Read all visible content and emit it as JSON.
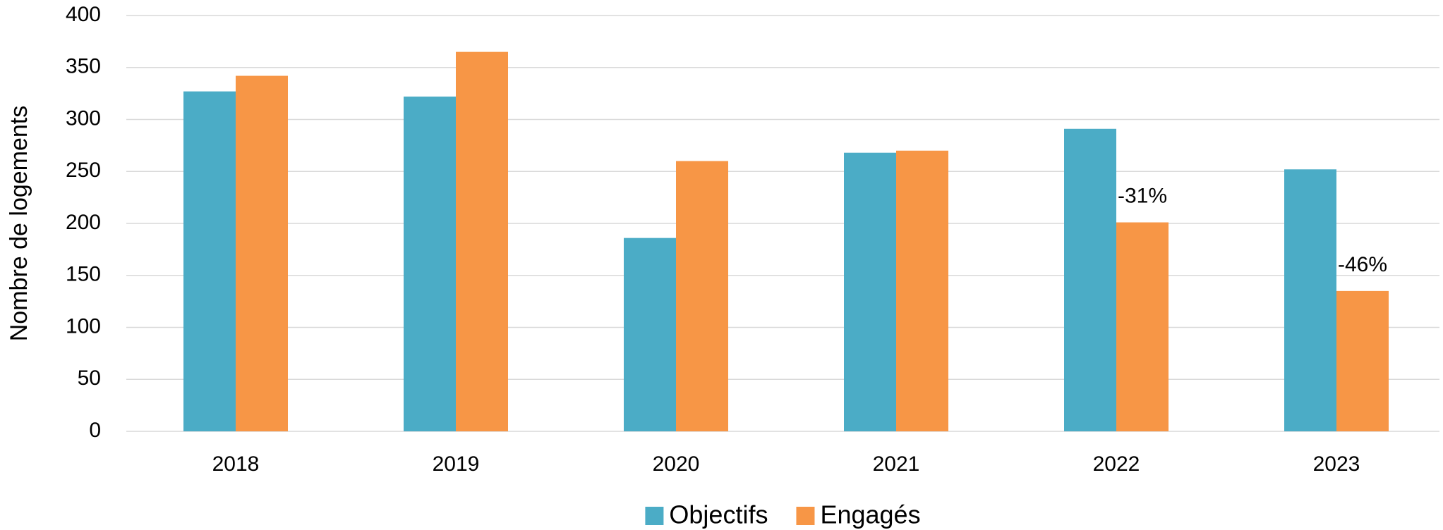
{
  "chart_data": {
    "type": "bar",
    "y_label": "Nombre de logements",
    "categories": [
      "2018",
      "2019",
      "2020",
      "2021",
      "2022",
      "2023"
    ],
    "series": [
      {
        "name": "Objectifs",
        "color": "#4bacc6",
        "values": [
          327,
          322,
          186,
          268,
          291,
          252
        ]
      },
      {
        "name": "Engagés",
        "color": "#f79646",
        "values": [
          342,
          365,
          260,
          270,
          201,
          135
        ]
      }
    ],
    "annotations": [
      {
        "text": "-31%",
        "category": "2022",
        "series": "Engagés"
      },
      {
        "text": "-46%",
        "category": "2023",
        "series": "Engagés"
      }
    ],
    "ylim": [
      0,
      400
    ],
    "yticks": [
      0,
      50,
      100,
      150,
      200,
      250,
      300,
      350,
      400
    ],
    "grid": true
  }
}
